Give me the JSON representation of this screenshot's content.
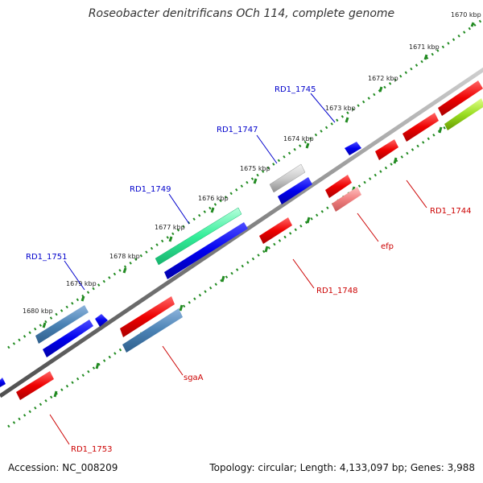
{
  "title": "Roseobacter denitrificans OCh 114, complete genome",
  "accession_text": "Accession: NC_008209",
  "topology_text": "Topology: circular; Length: 4,133,097 bp; Genes: 3,988",
  "colors": {
    "forward_label": "#0000cc",
    "reverse_label": "#cc0000",
    "backbone": "#808080",
    "ticks": "#228B22"
  },
  "tick_labels": [
    "1670 kbp",
    "1671 kbp",
    "1672 kbp",
    "1673 kbp",
    "1674 kbp",
    "1675 kbp",
    "1676 kbp",
    "1677 kbp",
    "1678 kbp",
    "1679 kbp",
    "1680 kbp"
  ],
  "gene_labels": {
    "rd1_1745": "RD1_1745",
    "rd1_1747": "RD1_1747",
    "rd1_1749": "RD1_1749",
    "rd1_1751": "RD1_1751",
    "rd1_1744": "RD1_1744",
    "efp": "efp",
    "rd1_1748": "RD1_1748",
    "sgaa": "sgaA",
    "rd1_1753": "RD1_1753"
  }
}
